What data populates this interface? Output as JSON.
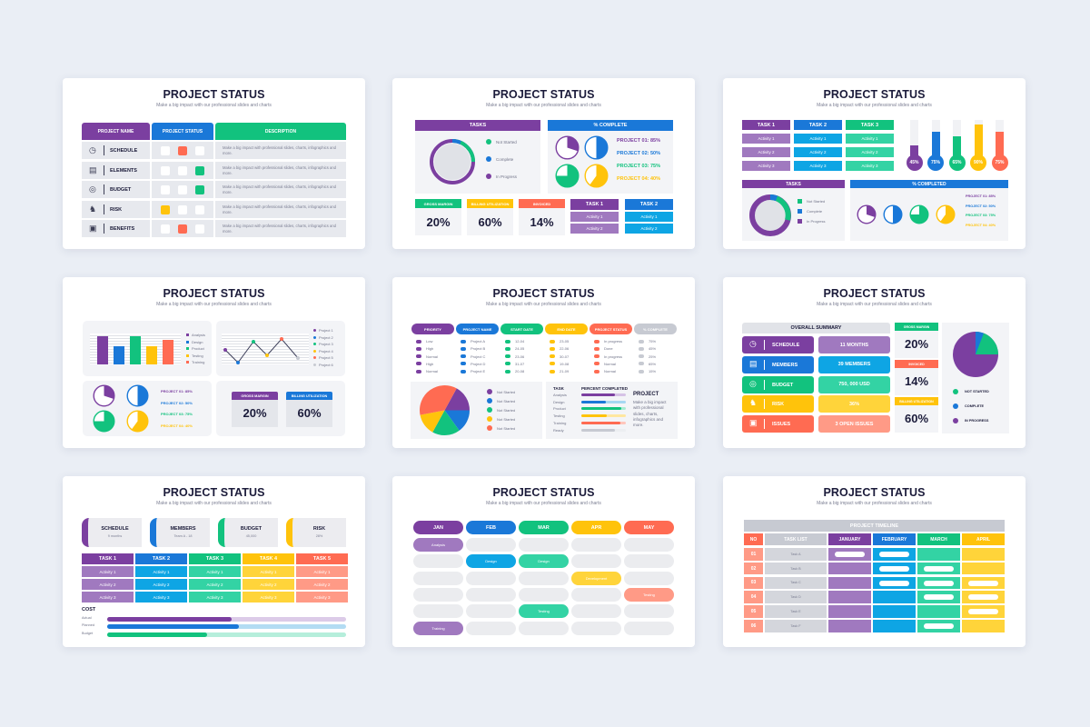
{
  "common": {
    "title": "PROJECT STATUS",
    "subtitle": "Make a big impact with our professional slides and charts"
  },
  "colors": {
    "purple": "#7b3fa0",
    "blue": "#1a78d8",
    "green": "#12c27e",
    "yellow": "#ffc30b",
    "red": "#ff6b52",
    "grey": "#c7cad2",
    "bg": "#eaeef5"
  },
  "slide1": {
    "headers": [
      "PROJECT NAME",
      "PROJECT STATUS",
      "DESCRIPTION"
    ],
    "rows": [
      {
        "icon": "clock-icon",
        "glyph": "◷",
        "name": "SCHEDULE",
        "status": [
          0,
          1,
          0
        ],
        "color": "#ff6b52",
        "desc": "Make a big impact with professional slides, charts, infographics and more."
      },
      {
        "icon": "building-icon",
        "glyph": "▤",
        "name": "ELEMENTS",
        "status": [
          0,
          0,
          1
        ],
        "color": "#12c27e",
        "desc": "Make a big impact with professional slides, charts, infographics and more."
      },
      {
        "icon": "target-icon",
        "glyph": "◎",
        "name": "BUDGET",
        "status": [
          0,
          0,
          1
        ],
        "color": "#12c27e",
        "desc": "Make a big impact with professional slides, charts, infographics and more."
      },
      {
        "icon": "chess-knight-icon",
        "glyph": "♞",
        "name": "RISK",
        "status": [
          1,
          0,
          0
        ],
        "color": "#ffc30b",
        "desc": "Make a big impact with professional slides, charts, infographics and more."
      },
      {
        "icon": "presentation-icon",
        "glyph": "▣",
        "name": "BENEFITS",
        "status": [
          0,
          1,
          0
        ],
        "color": "#ff6b52",
        "desc": "Make a big impact with professional slides, charts, infographics and more."
      }
    ]
  },
  "slide2": {
    "tasks_header": "TASKS",
    "complete_header": "% COMPLETE",
    "legend": [
      "Not Started",
      "Complete",
      "In Progress"
    ],
    "projects": [
      "PROJECT 01: 85%",
      "PROJECT 02: 50%",
      "PROJECT 03: 75%",
      "PROJECT 04: 40%"
    ],
    "kpis": [
      {
        "label": "GROSS MARGIN",
        "value": "20%"
      },
      {
        "label": "BILLING UTILIZATION",
        "value": "60%"
      },
      {
        "label": "INVOICED",
        "value": "14%"
      }
    ],
    "task1": {
      "label": "TASK 1",
      "items": [
        "Activity 1",
        "Activity 2"
      ]
    },
    "task2": {
      "label": "TASK 2",
      "items": [
        "Activity 1",
        "Activity 2"
      ]
    }
  },
  "slide3": {
    "tasks": [
      {
        "label": "TASK 1",
        "items": [
          "Activity 1",
          "Activity 2",
          "Activity 3"
        ]
      },
      {
        "label": "TASK 2",
        "items": [
          "Activity 1",
          "Activity 2",
          "Activity 3"
        ]
      },
      {
        "label": "TASK 3",
        "items": [
          "Activity 1",
          "Activity 2",
          "Activity 3"
        ]
      }
    ],
    "thermometers": [
      "45%",
      "75%",
      "65%",
      "90%",
      "75%"
    ],
    "tasks_header": "TASKS",
    "completed_header": "% COMPLETED",
    "legend": [
      "Not Started",
      "Complete",
      "In Progress"
    ],
    "projects": [
      "PROJECT 01: 85%",
      "PROJECT 02: 50%",
      "PROJECT 03: 75%",
      "PROJECT 04: 40%"
    ]
  },
  "slide4": {
    "bar_legend": [
      "Analysis",
      "Design",
      "Product",
      "Testing",
      "Training"
    ],
    "line_legend": [
      "Project 1",
      "Project 2",
      "Project 3",
      "Project 4",
      "Project 5",
      "Project 6"
    ],
    "projects": [
      "PROJECT 01: 85%",
      "PROJECT 02: 50%",
      "PROJECT 03: 75%",
      "PROJECT 04: 40%"
    ],
    "kpis": [
      {
        "label": "GROSS MARGIN",
        "value": "20%"
      },
      {
        "label": "BILLING UTILIZATION",
        "value": "60%"
      }
    ]
  },
  "slide5": {
    "headers": [
      "PRIORITY",
      "PROJECT NAME",
      "START DATE",
      "END DATE",
      "PROJECT STATUS",
      "% COMPLETE"
    ],
    "columns": [
      [
        "Low",
        "High",
        "Normal",
        "High",
        "Normal"
      ],
      [
        "Project A",
        "Project B",
        "Project C",
        "Project D",
        "Project E"
      ],
      [
        "12-04",
        "24-05",
        "23-06",
        "31-07",
        "20-08"
      ],
      [
        "23-05",
        "22-06",
        "30-07",
        "19-08",
        "21-09"
      ],
      [
        "In progress",
        "Done",
        "In progress",
        "Normal",
        "Normal"
      ],
      [
        "75%",
        "45%",
        "25%",
        "65%",
        "15%"
      ]
    ],
    "pie_legend": [
      "Not Started",
      "Not Started",
      "Not Started",
      "Not Started",
      "Not Started"
    ],
    "task_header": "TASK",
    "percent_header": "PERCENT COMPLETED",
    "task_rows": [
      "Analysis",
      "Design",
      "Product",
      "Testing",
      "Training",
      "Ready"
    ],
    "project_title": "PROJECT",
    "project_desc": "Make a big impact with professional slides, charts, infographics and more."
  },
  "slide6": {
    "summary_header": "OVERALL SUMMARY",
    "rows": [
      {
        "icon": "clock-icon",
        "glyph": "◷",
        "label": "SCHEDULE",
        "value": "11 MONTHS"
      },
      {
        "icon": "building-icon",
        "glyph": "▤",
        "label": "MEMBERS",
        "value": "39 MEMBERS"
      },
      {
        "icon": "target-icon",
        "glyph": "◎",
        "label": "BUDGET",
        "value": "750, 000 USD"
      },
      {
        "icon": "chess-knight-icon",
        "glyph": "♞",
        "label": "RISK",
        "value": "36%"
      },
      {
        "icon": "presentation-icon",
        "glyph": "▣",
        "label": "ISSUES",
        "value": "3 OPEN ISSUES"
      }
    ],
    "kpis": [
      {
        "label": "GROSS MARGIN",
        "value": "20%"
      },
      {
        "label": "INVOICED",
        "value": "14%"
      },
      {
        "label": "BILLING UTILIZATION",
        "value": "60%"
      }
    ],
    "legend": [
      "NOT STARTED",
      "COMPLETE",
      "IN PROGRESS"
    ]
  },
  "slide7": {
    "cards": [
      {
        "label": "SCHEDULE",
        "value": "9 months"
      },
      {
        "label": "MEMBERS",
        "value": "Team A - 18"
      },
      {
        "label": "BUDGET",
        "value": "45,000"
      },
      {
        "label": "RISK",
        "value": "28%"
      }
    ],
    "tasks": [
      {
        "label": "TASK 1",
        "items": [
          "Activity 1",
          "Activity 2",
          "Activity 3"
        ]
      },
      {
        "label": "TASK 2",
        "items": [
          "Activity 1",
          "Activity 2",
          "Activity 3"
        ]
      },
      {
        "label": "TASK 3",
        "items": [
          "Activity 1",
          "Activity 2",
          "Activity 3"
        ]
      },
      {
        "label": "TASK 4",
        "items": [
          "Activity 1",
          "Activity 2",
          "Activity 3"
        ]
      },
      {
        "label": "TASK 5",
        "items": [
          "Activity 1",
          "Activity 2",
          "Activity 3"
        ]
      }
    ],
    "cost_title": "COST",
    "cost_rows": [
      {
        "label": "Actual",
        "pct": 52
      },
      {
        "label": "Planned",
        "pct": 55
      },
      {
        "label": "Budget",
        "pct": 42
      }
    ]
  },
  "slide8": {
    "months": [
      "JAN",
      "FEB",
      "MAR",
      "APR",
      "MAY"
    ],
    "entries": [
      {
        "row": 0,
        "col": 0,
        "label": "Analysis"
      },
      {
        "row": 1,
        "col": 1,
        "label": "Design"
      },
      {
        "row": 1,
        "col": 2,
        "label": "Design"
      },
      {
        "row": 2,
        "col": 3,
        "label": "Development"
      },
      {
        "row": 3,
        "col": 4,
        "label": "Testing"
      },
      {
        "row": 4,
        "col": 2,
        "label": "Testing"
      },
      {
        "row": 5,
        "col": 0,
        "label": "Training"
      }
    ]
  },
  "slide9": {
    "timeline_header": "PROJECT TIMELINE",
    "headers": [
      "NO",
      "TASK LIST",
      "JANUARY",
      "FEBRUARY",
      "MARCH",
      "APRIL"
    ],
    "rows": [
      {
        "no": "01",
        "task": "Task A",
        "bars": [
          1,
          1,
          0,
          0
        ]
      },
      {
        "no": "02",
        "task": "Task B",
        "bars": [
          0,
          1,
          1,
          0
        ]
      },
      {
        "no": "03",
        "task": "Task C",
        "bars": [
          0,
          1,
          1,
          1
        ]
      },
      {
        "no": "04",
        "task": "Task D",
        "bars": [
          0,
          0,
          1,
          1
        ]
      },
      {
        "no": "05",
        "task": "Task E",
        "bars": [
          0,
          0,
          0,
          1
        ]
      },
      {
        "no": "06",
        "task": "Task F",
        "bars": [
          0,
          0,
          1,
          0
        ]
      }
    ]
  },
  "chart_data": [
    {
      "type": "pie",
      "title": "Tasks (donut)",
      "categories": [
        "Not Started",
        "Complete",
        "In Progress"
      ],
      "values": [
        20,
        5,
        75
      ]
    },
    {
      "type": "pie",
      "title": "% Complete",
      "categories": [
        "Project 01",
        "Project 02",
        "Project 03",
        "Project 04"
      ],
      "values": [
        85,
        50,
        75,
        40
      ]
    },
    {
      "type": "bar",
      "title": "Thermometers",
      "categories": [
        "1",
        "2",
        "3",
        "4",
        "5"
      ],
      "values": [
        45,
        75,
        65,
        90,
        75
      ],
      "ylim": [
        0,
        100
      ]
    },
    {
      "type": "bar",
      "categories": [
        "Analysis",
        "Design",
        "Product",
        "Testing",
        "Training"
      ],
      "values": [
        90,
        58,
        90,
        58,
        80
      ],
      "ylim": [
        0,
        100
      ]
    },
    {
      "type": "line",
      "categories": [
        "Project 1",
        "Project 2",
        "Project 3",
        "Project 4",
        "Project 5",
        "Project 6"
      ],
      "values": [
        50,
        10,
        75,
        35,
        85,
        20
      ]
    },
    {
      "type": "pie",
      "title": "Slide 5 pie",
      "categories": [
        "Purple",
        "Blue",
        "Green",
        "Yellow",
        "Red"
      ],
      "values": [
        17,
        15,
        18,
        14,
        36
      ]
    },
    {
      "type": "bar",
      "title": "Percent Completed",
      "categories": [
        "Analysis",
        "Design",
        "Product",
        "Testing",
        "Training",
        "Ready"
      ],
      "values": [
        75,
        55,
        90,
        58,
        88,
        75
      ],
      "ylim": [
        0,
        100
      ]
    },
    {
      "type": "pie",
      "title": "Overall Summary",
      "categories": [
        "Not Started",
        "Complete",
        "In Progress"
      ],
      "values": [
        18,
        6,
        76
      ]
    },
    {
      "type": "bar",
      "title": "Cost",
      "categories": [
        "Actual",
        "Planned",
        "Budget"
      ],
      "values": [
        52,
        55,
        42
      ],
      "ylim": [
        0,
        100
      ]
    }
  ]
}
